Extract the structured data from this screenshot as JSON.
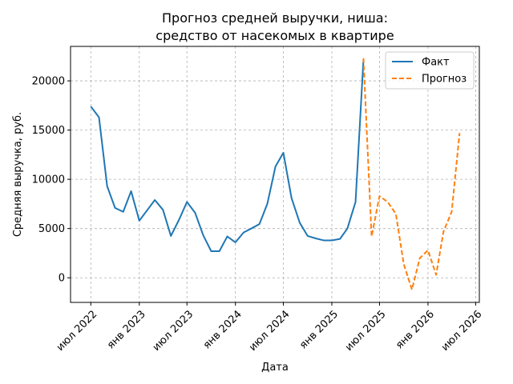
{
  "chart_data": {
    "type": "line",
    "title": [
      "Прогноз средней выручки, ниша:",
      "средство от насекомых в квартире"
    ],
    "xlabel": "Дата",
    "ylabel": "Средняя выручка, руб.",
    "x_ticks": [
      {
        "label": "июл 2022",
        "date": "2022-07-01"
      },
      {
        "label": "янв 2023",
        "date": "2023-01-01"
      },
      {
        "label": "июл 2023",
        "date": "2023-07-01"
      },
      {
        "label": "янв 2024",
        "date": "2024-01-01"
      },
      {
        "label": "июл 2024",
        "date": "2024-07-01"
      },
      {
        "label": "янв 2025",
        "date": "2025-01-01"
      },
      {
        "label": "июл 2025",
        "date": "2025-07-01"
      },
      {
        "label": "янв 2026",
        "date": "2026-01-01"
      },
      {
        "label": "июл 2026",
        "date": "2026-07-01"
      }
    ],
    "xlim": [
      "2022-04-15",
      "2026-07-15"
    ],
    "y_ticks": [
      0,
      5000,
      10000,
      15000,
      20000
    ],
    "ylim": [
      -2500,
      23500
    ],
    "grid": true,
    "legend_position": "top-right",
    "series": [
      {
        "name": "Факт",
        "style": "solid",
        "color": "#1f77b4",
        "points": [
          {
            "x": "2022-07-01",
            "y": 17400
          },
          {
            "x": "2022-08-01",
            "y": 16300
          },
          {
            "x": "2022-09-01",
            "y": 9300
          },
          {
            "x": "2022-10-01",
            "y": 7100
          },
          {
            "x": "2022-11-01",
            "y": 6700
          },
          {
            "x": "2022-12-01",
            "y": 8800
          },
          {
            "x": "2023-01-01",
            "y": 5800
          },
          {
            "x": "2023-02-01",
            "y": 6900
          },
          {
            "x": "2023-03-01",
            "y": 7900
          },
          {
            "x": "2023-04-01",
            "y": 6900
          },
          {
            "x": "2023-05-01",
            "y": 4250
          },
          {
            "x": "2023-06-01",
            "y": 5900
          },
          {
            "x": "2023-07-01",
            "y": 7700
          },
          {
            "x": "2023-08-01",
            "y": 6600
          },
          {
            "x": "2023-09-01",
            "y": 4300
          },
          {
            "x": "2023-10-01",
            "y": 2700
          },
          {
            "x": "2023-11-01",
            "y": 2700
          },
          {
            "x": "2023-12-01",
            "y": 4200
          },
          {
            "x": "2024-01-01",
            "y": 3600
          },
          {
            "x": "2024-02-01",
            "y": 4600
          },
          {
            "x": "2024-03-01",
            "y": 5000
          },
          {
            "x": "2024-04-01",
            "y": 5450
          },
          {
            "x": "2024-05-01",
            "y": 7500
          },
          {
            "x": "2024-06-01",
            "y": 11300
          },
          {
            "x": "2024-07-01",
            "y": 12700
          },
          {
            "x": "2024-08-01",
            "y": 8100
          },
          {
            "x": "2024-09-01",
            "y": 5600
          },
          {
            "x": "2024-10-01",
            "y": 4250
          },
          {
            "x": "2024-11-01",
            "y": 4000
          },
          {
            "x": "2024-12-01",
            "y": 3800
          },
          {
            "x": "2025-01-01",
            "y": 3800
          },
          {
            "x": "2025-02-01",
            "y": 3950
          },
          {
            "x": "2025-03-01",
            "y": 5000
          },
          {
            "x": "2025-04-01",
            "y": 7700
          },
          {
            "x": "2025-05-01",
            "y": 22100
          }
        ]
      },
      {
        "name": "Прогноз",
        "style": "dashed",
        "color": "#ff7f0e",
        "points": [
          {
            "x": "2025-05-01",
            "y": 22300
          },
          {
            "x": "2025-06-01",
            "y": 4200
          },
          {
            "x": "2025-07-01",
            "y": 8300
          },
          {
            "x": "2025-08-01",
            "y": 7700
          },
          {
            "x": "2025-09-01",
            "y": 6500
          },
          {
            "x": "2025-10-01",
            "y": 1400
          },
          {
            "x": "2025-11-01",
            "y": -1200
          },
          {
            "x": "2025-12-01",
            "y": 2000
          },
          {
            "x": "2026-01-01",
            "y": 2800
          },
          {
            "x": "2026-02-01",
            "y": 300
          },
          {
            "x": "2026-03-01",
            "y": 4700
          },
          {
            "x": "2026-04-01",
            "y": 6700
          },
          {
            "x": "2026-05-01",
            "y": 14700
          }
        ]
      }
    ]
  }
}
